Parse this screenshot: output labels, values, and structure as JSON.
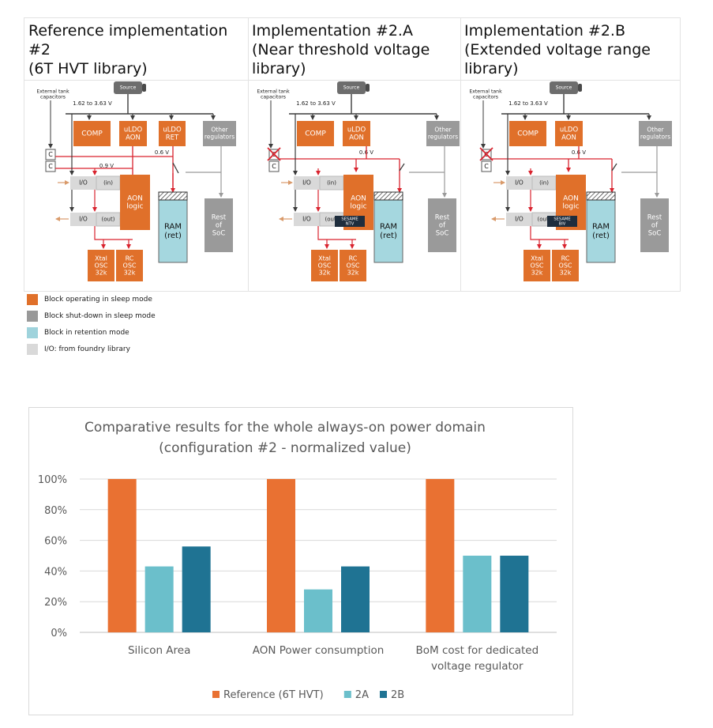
{
  "panels": [
    {
      "title": "Reference implementation #2\n(6T HVT library)",
      "labels": {
        "source": "Source",
        "tank": "External tank\ncapacitors",
        "vin": "1.62 to 3.63 V",
        "comp": "COMP",
        "uldo_aon": "uLDO\nAON",
        "uldo_ret": "uLDO\nRET",
        "other_reg": "Other\nregulators",
        "v06": "0.6 V",
        "v09": "0.9 V",
        "cap1": "C",
        "cap2": "C",
        "io_in": "I/O",
        "io_in_tag": "(in)",
        "io_out": "I/O",
        "io_out_tag": "(out)",
        "aon_logic": "AON\nlogic",
        "ram": "RAM\n(ret)",
        "rest": "Rest\nof\nSoC",
        "xtal": "Xtal\nOSC\n32k",
        "rc": "RC\nOSC\n32k"
      }
    },
    {
      "title": "Implementation #2.A\n(Near threshold voltage\nlibrary)",
      "labels": {
        "source": "Source",
        "tank": "External tank\ncapacitors",
        "vin": "1.62 to 3.63 V",
        "comp": "COMP",
        "uldo_aon": "uLDO\nAON",
        "other_reg": "Other\nregulators",
        "v06": "0.6 V",
        "cap1": "C",
        "cap2": "C",
        "io_in": "I/O",
        "io_in_tag": "(in)",
        "io_out": "I/O",
        "io_out_tag": "(out)",
        "aon_logic": "AON\nlogic",
        "sesame": "SESAME\nNTV",
        "ram": "RAM\n(ret)",
        "rest": "Rest\nof\nSoC",
        "xtal": "Xtal\nOSC\n32k",
        "rc": "RC\nOSC\n32k"
      }
    },
    {
      "title": "Implementation #2.B\n(Extended voltage range\nlibrary)",
      "labels": {
        "source": "Source",
        "tank": "External tank\ncapacitors",
        "vin": "1.62 to 3.63 V",
        "comp": "COMP",
        "uldo_aon": "uLDO\nAON",
        "other_reg": "Other\nregulators",
        "v06": "0.6 V",
        "cap1": "C",
        "cap2": "C",
        "io_in": "I/O",
        "io_in_tag": "(in)",
        "io_out": "I/O",
        "io_out_tag": "(out)",
        "aon_logic": "AON\nlogic",
        "sesame": "SESAME\nBIV",
        "ram": "RAM\n(ret)",
        "rest": "Rest\nof\nSoC",
        "xtal": "Xtal\nOSC\n32k",
        "rc": "RC\nOSC\n32k"
      }
    }
  ],
  "legend": [
    {
      "label": "Block operating in sleep mode",
      "color": "#e0702a"
    },
    {
      "label": "Block shut-down in sleep mode",
      "color": "#999999"
    },
    {
      "label": "Block in retention mode",
      "color": "#9fd3dc"
    },
    {
      "label": "I/O: from foundry library",
      "color": "#d9d9d9"
    }
  ],
  "colors": {
    "orange": "#e0702a",
    "gray": "#9a9a9a",
    "cyan": "#a5d7df",
    "io": "#d9d9d9",
    "dark": "#3b3b3b",
    "red": "#d9232e",
    "navy": "#1e2d3d"
  },
  "chart_data": {
    "type": "bar",
    "title": "Comparative results for the whole always-on power domain\n(configuration #2 - normalized value)",
    "categories": [
      "Silicon Area",
      "AON Power consumption",
      "BoM cost for dedicated\nvoltage regulator"
    ],
    "series": [
      {
        "name": "Reference (6T HVT)",
        "color": "#e97132",
        "values": [
          100,
          100,
          100
        ]
      },
      {
        "name": "2A",
        "color": "#6bbfcb",
        "values": [
          43,
          28,
          50
        ]
      },
      {
        "name": "2B",
        "color": "#1f7393",
        "values": [
          56,
          43,
          50
        ]
      }
    ],
    "y_ticks": [
      "0%",
      "20%",
      "40%",
      "60%",
      "80%",
      "100%"
    ],
    "ylim": [
      0,
      100
    ],
    "grid": true,
    "legend_position": "bottom"
  }
}
